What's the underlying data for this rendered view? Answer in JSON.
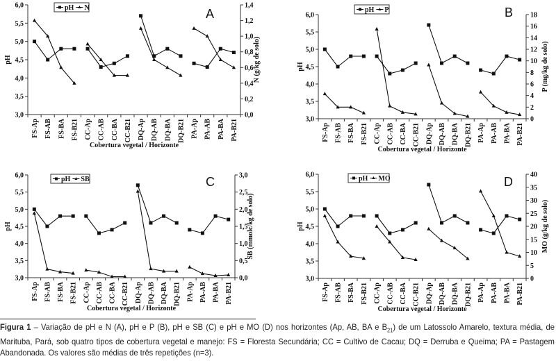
{
  "chart_data": [
    {
      "type": "line",
      "panel": "A",
      "categories": [
        "FS-Ap",
        "FS-AB",
        "FS-BA",
        "FS-B21",
        "CC-Ap",
        "CC-AB",
        "CC-BA",
        "CC-B21",
        "DQ-Ap",
        "DQ-AB",
        "DQ-BA",
        "DQ-B21",
        "PA-Ap",
        "PA-AB",
        "PA-BA",
        "PA-B21"
      ],
      "groups": 4,
      "xlabel": "Cobertura vegetal / Horizonte",
      "ylabel": "pH",
      "ylim": [
        3.0,
        6.0
      ],
      "yticks": [
        "3,0",
        "3,5",
        "4,0",
        "4,5",
        "5,0",
        "5,5",
        "6,0"
      ],
      "y2label": "N (g/kg de solo)",
      "y2lim": [
        0.0,
        1.4
      ],
      "y2ticks": [
        "0,0",
        "0,2",
        "0,4",
        "0,6",
        "0,8",
        "1,0",
        "1,2",
        "1,4"
      ],
      "series": [
        {
          "name": "pH",
          "marker": "square",
          "axis": "left",
          "values": [
            5.0,
            4.5,
            4.8,
            4.8,
            4.8,
            4.3,
            4.4,
            4.6,
            5.7,
            4.6,
            4.8,
            4.6,
            4.4,
            4.3,
            4.8,
            4.7
          ]
        },
        {
          "name": "N",
          "marker": "triangle",
          "axis": "right",
          "values": [
            1.2,
            1.0,
            0.6,
            0.4,
            0.9,
            0.7,
            0.5,
            0.5,
            1.1,
            0.7,
            0.6,
            0.5,
            1.1,
            1.0,
            0.7,
            0.6
          ]
        }
      ],
      "legend": "top-left",
      "grid": false
    },
    {
      "type": "line",
      "panel": "B",
      "categories": [
        "FS-Ap",
        "FS-AB",
        "FS-BA",
        "FS-B21",
        "CC-Ap",
        "CC-AB",
        "CC-BA",
        "CC-B21",
        "DQ-Ap",
        "DQ-AB",
        "DQ-BA",
        "DQ-B21",
        "PA-Ap",
        "PA-AB",
        "PA-BA",
        "PA-B21"
      ],
      "groups": 4,
      "xlabel": "Cobertura vegetal / Horizonte",
      "ylabel": "pH",
      "ylim": [
        3.0,
        6.0
      ],
      "yticks": [
        "3,0",
        "3,5",
        "4,0",
        "4,5",
        "5,0",
        "5,5",
        "6,0"
      ],
      "y2label": "P (mg/kg de solo)",
      "y2lim": [
        0,
        18
      ],
      "y2ticks": [
        "0",
        "2",
        "4",
        "6",
        "8",
        "10",
        "12",
        "14",
        "16",
        "18"
      ],
      "series": [
        {
          "name": "pH",
          "marker": "square",
          "axis": "left",
          "values": [
            5.0,
            4.5,
            4.8,
            4.8,
            4.8,
            4.3,
            4.4,
            4.6,
            5.7,
            4.6,
            4.8,
            4.6,
            4.4,
            4.3,
            4.8,
            4.7
          ]
        },
        {
          "name": "P",
          "marker": "triangle",
          "axis": "right",
          "values": [
            4.3,
            2.0,
            2.0,
            1.0,
            15.5,
            2.2,
            1.1,
            0.8,
            9.3,
            2.7,
            0.9,
            0.4,
            4.6,
            2.2,
            1.1,
            0.7
          ]
        }
      ],
      "legend": "top-left",
      "grid": false
    },
    {
      "type": "line",
      "panel": "C",
      "categories": [
        "FS-Ap",
        "FS-AB",
        "FS-BA",
        "FS-B21",
        "CC-Ap",
        "CC-AB",
        "CC-BA",
        "CC-B21",
        "DQ-Ap",
        "DQ-AB",
        "DQ-BA",
        "DQ-B21",
        "PA-Ap",
        "PA-AB",
        "PA-BA",
        "PA-B21"
      ],
      "groups": 4,
      "xlabel": "Cobertura vegetal / Horizonte",
      "ylabel": "pH",
      "ylim": [
        3.0,
        6.0
      ],
      "yticks": [
        "3,0",
        "3,5",
        "4,0",
        "4,5",
        "5,0",
        "5,5",
        "6,0"
      ],
      "y2label": "SB (mmolc/kg de solo)",
      "y2lim": [
        0.0,
        3.0
      ],
      "y2ticks": [
        "0,0",
        "0,5",
        "1,0",
        "1,5",
        "2,0",
        "2,5",
        "3,0"
      ],
      "series": [
        {
          "name": "pH",
          "marker": "square",
          "axis": "left",
          "values": [
            5.0,
            4.5,
            4.8,
            4.8,
            4.8,
            4.3,
            4.4,
            4.6,
            5.7,
            4.6,
            4.8,
            4.6,
            4.4,
            4.3,
            4.8,
            4.7
          ]
        },
        {
          "name": "SB",
          "marker": "triangle",
          "axis": "right",
          "values": [
            1.88,
            0.25,
            0.17,
            0.13,
            0.22,
            0.16,
            0.03,
            0.03,
            2.52,
            0.26,
            0.19,
            0.19,
            0.31,
            0.12,
            0.06,
            0.08
          ]
        }
      ],
      "legend": "top-left",
      "grid": false
    },
    {
      "type": "line",
      "panel": "D",
      "categories": [
        "FS-Ap",
        "FS-AB",
        "FS-BA",
        "FS-B21",
        "CC-Ap",
        "CC-AB",
        "CC-BA",
        "CC-B21",
        "DQ-Ap",
        "DQ-AB",
        "DQ-BA",
        "DQ-B21",
        "PA-Ap",
        "PA-AB",
        "PA-BA",
        "PA-B21"
      ],
      "groups": 4,
      "xlabel": "Cobertura vegetal / Horizonte",
      "ylabel": "pH",
      "ylim": [
        3.0,
        6.0
      ],
      "yticks": [
        "3,0",
        "3,5",
        "4,0",
        "4,5",
        "5,0",
        "5,5",
        "6,0"
      ],
      "y2label": "MO (g/kg de solo)",
      "y2lim": [
        0,
        40
      ],
      "y2ticks": [
        "0",
        "5",
        "10",
        "15",
        "20",
        "25",
        "30",
        "35",
        "40"
      ],
      "series": [
        {
          "name": "pH",
          "marker": "square",
          "axis": "left",
          "values": [
            5.0,
            4.5,
            4.8,
            4.8,
            4.8,
            4.3,
            4.4,
            4.6,
            5.7,
            4.6,
            4.8,
            4.6,
            4.4,
            4.3,
            4.8,
            4.7
          ]
        },
        {
          "name": "MO",
          "marker": "triangle",
          "axis": "right",
          "values": [
            24,
            14,
            8.5,
            7.7,
            20,
            14,
            8,
            7.2,
            19,
            14.5,
            11.7,
            7.6,
            33.5,
            24,
            10,
            8.5
          ]
        }
      ],
      "legend": "top-left",
      "grid": false
    }
  ],
  "caption": {
    "label": "Figura 1",
    "text_before_sub": " – Variação de pH e N (A), pH e P (B), pH e SB (C) e pH e MO (D) nos horizontes (Ap, AB, BA e B",
    "subscript": "21",
    "text_after_sub": ") de um Latossolo Amarelo, textura média, de Marituba, Pará, sob quatro tipos de  cobertura vegetal e manejo: FS = Floresta Secundária; CC = Cultivo de Cacau; DQ = Derruba e Queima; PA = Pastagem Abandonada. Os valores são médias de três repetições (n=3)."
  }
}
